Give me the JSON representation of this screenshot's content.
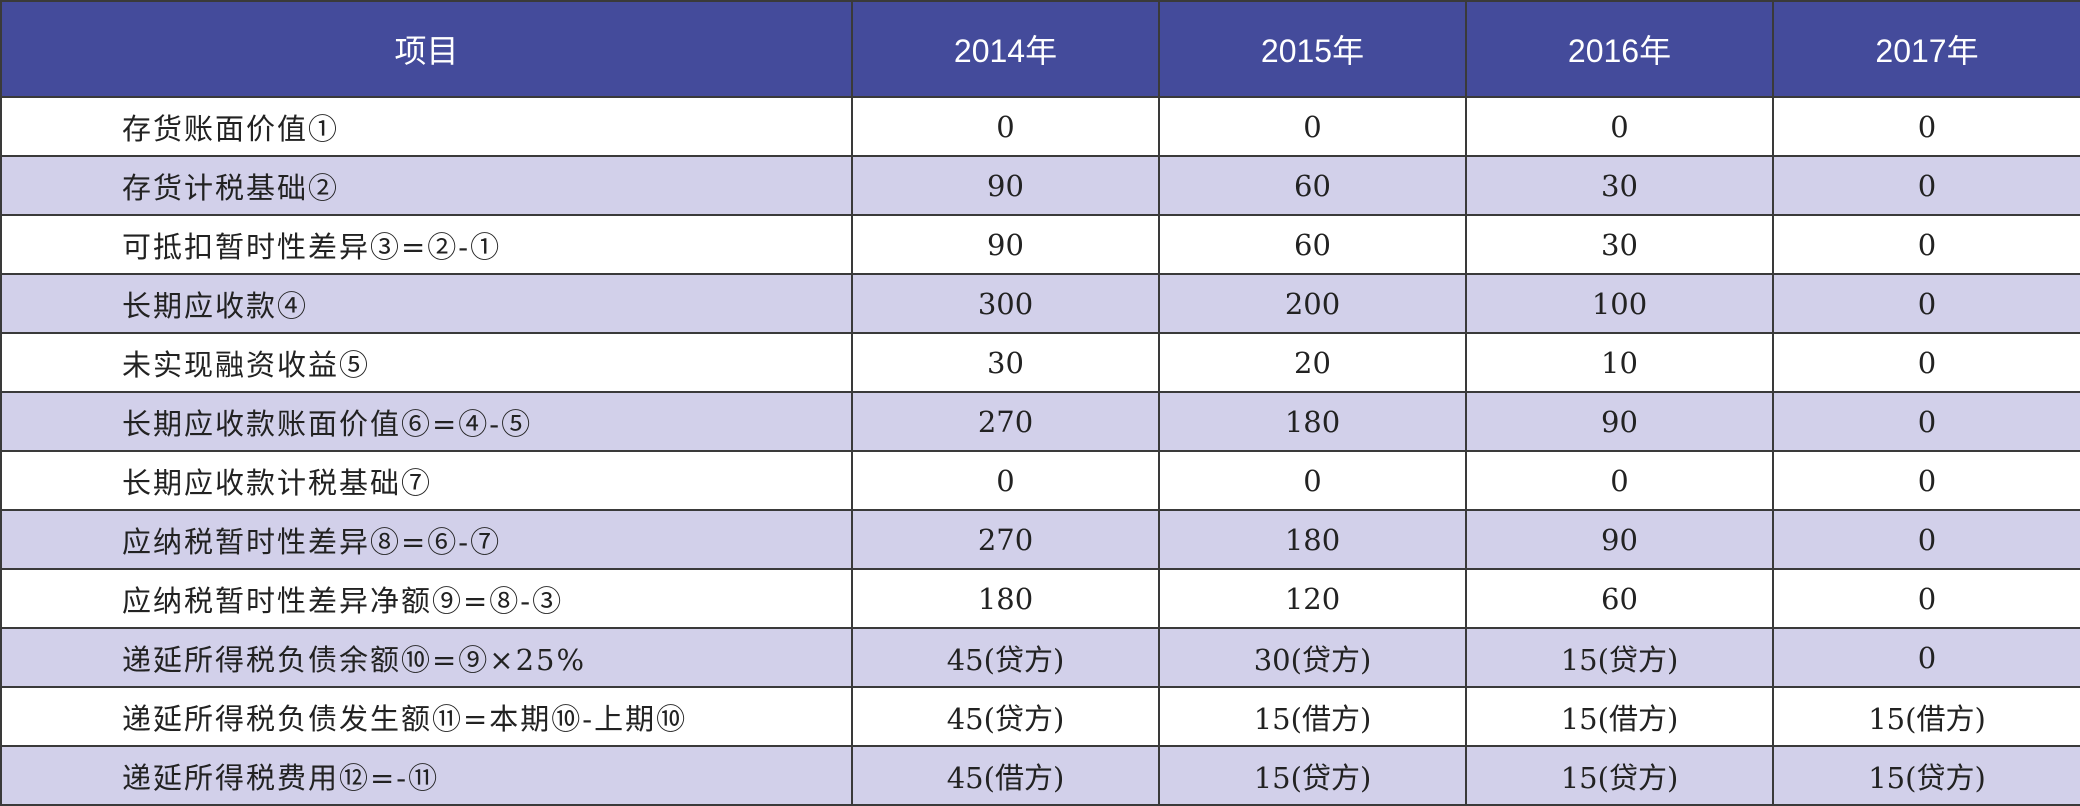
{
  "table": {
    "headers": [
      "项目",
      "2014年",
      "2015年",
      "2016年",
      "2017年"
    ],
    "rows": [
      {
        "label": "存货账面价值①",
        "values": [
          "0",
          "0",
          "0",
          "0"
        ]
      },
      {
        "label": "存货计税基础②",
        "values": [
          "90",
          "60",
          "30",
          "0"
        ]
      },
      {
        "label": "可抵扣暂时性差异③=②-①",
        "values": [
          "90",
          "60",
          "30",
          "0"
        ]
      },
      {
        "label": "长期应收款④",
        "values": [
          "300",
          "200",
          "100",
          "0"
        ]
      },
      {
        "label": "未实现融资收益⑤",
        "values": [
          "30",
          "20",
          "10",
          "0"
        ]
      },
      {
        "label": "长期应收款账面价值⑥=④-⑤",
        "values": [
          "270",
          "180",
          "90",
          "0"
        ]
      },
      {
        "label": "长期应收款计税基础⑦",
        "values": [
          "0",
          "0",
          "0",
          "0"
        ]
      },
      {
        "label": "应纳税暂时性差异⑧=⑥-⑦",
        "values": [
          "270",
          "180",
          "90",
          "0"
        ]
      },
      {
        "label": "应纳税暂时性差异净额⑨=⑧-③",
        "values": [
          "180",
          "120",
          "60",
          "0"
        ]
      },
      {
        "label": "递延所得税负债余额⑩=⑨×25%",
        "values": [
          "45(贷方)",
          "30(贷方)",
          "15(贷方)",
          "0"
        ]
      },
      {
        "label": "递延所得税负债发生额⑪=本期⑩-上期⑩",
        "values": [
          "45(贷方)",
          "15(借方)",
          "15(借方)",
          "15(借方)"
        ]
      },
      {
        "label": "递延所得税费用⑫=-⑪",
        "values": [
          "45(借方)",
          "15(贷方)",
          "15(贷方)",
          "15(贷方)"
        ]
      }
    ]
  },
  "colors": {
    "header_bg": "#444b9b",
    "header_text": "#ffffff",
    "row_alt_bg": "#d2d0ea",
    "row_plain_bg": "#ffffff",
    "border": "#3a3a3a"
  }
}
